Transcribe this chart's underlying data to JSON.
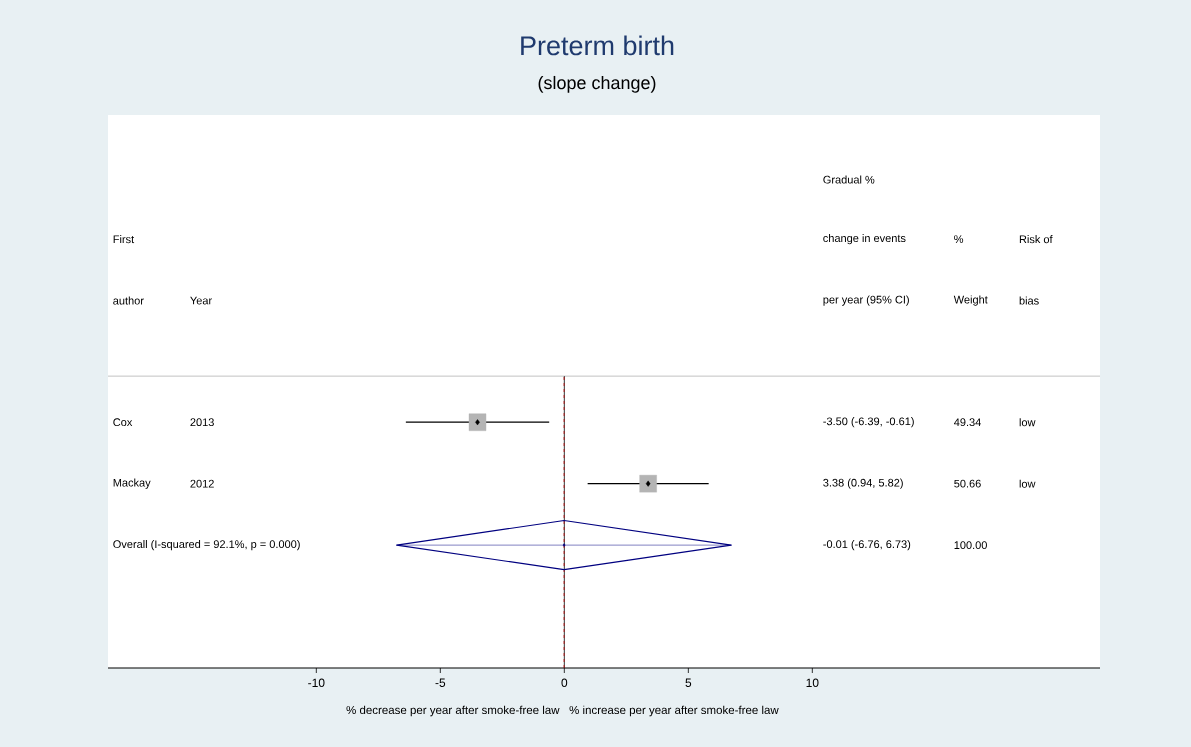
{
  "chart_data": {
    "type": "scatter",
    "orientation": "horizontal",
    "title": "Preterm birth",
    "subtitle": "(slope change)",
    "categories": [
      "Cox",
      "Mackay",
      "Overall  (I-squared = 92.1%, p = 0.000)"
    ],
    "series": [
      {
        "type": "scatter",
        "marker": "square",
        "color": "#b4b4b4",
        "values": [
          -3.5,
          3.38,
          null
        ],
        "errors": [
          [
            -6.39,
            -0.61
          ],
          [
            0.94,
            5.82
          ],
          null
        ]
      },
      {
        "type": "scatter",
        "marker": "diamond",
        "color": "#000080",
        "values": [
          null,
          null,
          -0.01
        ],
        "errors": [
          null,
          null,
          [
            -6.76,
            6.73
          ]
        ]
      }
    ],
    "xlim": [
      -18.4,
      21.6
    ],
    "xticks": [
      -10,
      -5,
      0,
      5,
      10
    ],
    "ref_lines": [
      {
        "axis": "x",
        "value": 0,
        "color": "#000000"
      },
      {
        "axis": "x",
        "value": -0.01,
        "line_style": "dashed",
        "color": "#c00000"
      }
    ],
    "annotations": [
      "First",
      "author",
      "Year",
      "Gradual %",
      "change in events",
      "per year (95% CI)",
      "%",
      "Weight",
      "Risk of",
      "bias",
      "2013",
      "2012",
      "49.34",
      "50.66",
      "100.00",
      "low",
      "low",
      "% decrease per year after smoke-free law",
      "% increase per year after smoke-free law",
      "-3.50 (-6.39, -0.61)",
      "3.38 (0.94, 5.82)",
      "-0.01 (-6.76, 6.73)"
    ]
  }
}
